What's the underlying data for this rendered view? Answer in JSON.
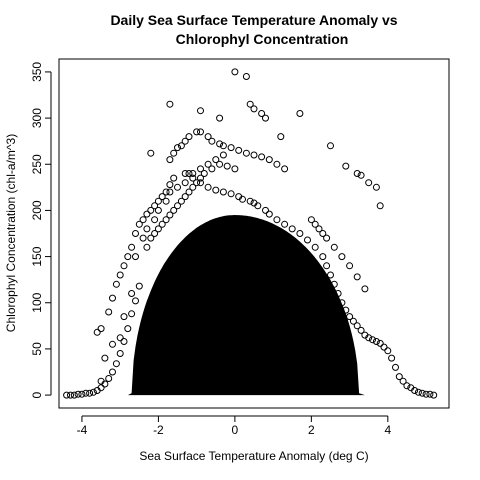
{
  "chart_data": {
    "type": "scatter",
    "title_lines": [
      "Daily Sea Surface Temperature Anomaly vs",
      "Chlorophyl Concentration"
    ],
    "xlabel": "Sea Surface Temperature Anomaly (deg C)",
    "ylabel": "Chlorophyl Concentration (chl-a/m^3)",
    "xlim": [
      -4.6,
      5.6
    ],
    "ylim": [
      -14,
      364
    ],
    "xticks": [
      -4,
      -2,
      0,
      2,
      4
    ],
    "xtick_labels": [
      "-4",
      "-2",
      "0",
      "2",
      "4"
    ],
    "yticks": [
      0,
      50,
      100,
      150,
      200,
      250,
      300,
      350
    ],
    "ytick_labels": [
      "0",
      "50",
      "100",
      "150",
      "200",
      "250",
      "300",
      "350"
    ],
    "grid": false,
    "legend": "none",
    "marker": "open-circle",
    "marker_color": "#000000",
    "series": [
      {
        "x": [
          -4.4,
          -4.3,
          -4.2,
          -4.1,
          -4.0,
          -3.9,
          -3.8,
          -3.7,
          -3.6,
          -3.5,
          -3.4,
          -3.3,
          -3.2,
          -3.1,
          -3.0,
          -2.9,
          -2.8,
          -2.7,
          -2.6,
          -2.5,
          -3.6,
          -3.5,
          -3.3,
          -3.2,
          -3.1,
          -3.0,
          -2.9,
          -2.8,
          -2.7,
          -2.6,
          -2.5,
          -2.4,
          -2.3,
          -2.2,
          -2.1,
          -2.0,
          -1.9,
          -1.8,
          -1.7,
          -1.6,
          -3.5,
          -3.4,
          -3.2,
          -3.0,
          -2.9,
          -2.7,
          -2.6,
          -2.4,
          -2.3,
          -2.1,
          -2.0,
          -1.8,
          -1.7,
          -1.5,
          -1.3,
          -1.1,
          -0.9,
          -0.7,
          -0.5,
          -0.3,
          -2.3,
          -2.2,
          -2.1,
          -2.0,
          -1.9,
          -1.8,
          -1.7,
          -1.6,
          -1.5,
          -1.4,
          -1.3,
          -1.2,
          -1.1,
          -1.0,
          -0.9,
          -0.8,
          -0.6,
          -0.4,
          -0.2,
          0.0,
          -1.7,
          -1.6,
          -1.5,
          -1.4,
          -1.3,
          -1.2,
          -1.0,
          -0.9,
          -0.7,
          -0.6,
          -0.4,
          -0.3,
          -0.1,
          0.1,
          0.3,
          0.5,
          0.7,
          0.9,
          1.1,
          1.3,
          -1.2,
          -1.1,
          -0.9,
          -0.7,
          -0.5,
          -0.3,
          -0.1,
          0.1,
          0.2,
          0.4,
          0.5,
          0.6,
          0.8,
          0.9,
          1.1,
          1.3,
          1.5,
          1.7,
          1.9,
          2.1,
          0.0,
          0.3,
          0.4,
          0.5,
          0.7,
          -1.7,
          -0.9,
          -0.4,
          0.8,
          1.7,
          -2.2,
          -1.3,
          1.2,
          2.5,
          2.9,
          3.2,
          3.3,
          3.5,
          3.7,
          3.8,
          2.3,
          2.4,
          2.5,
          2.6,
          2.7,
          2.8,
          2.9,
          3.0,
          3.1,
          3.2,
          3.3,
          3.4,
          3.5,
          3.6,
          3.7,
          3.8,
          3.9,
          4.0,
          4.1,
          4.2,
          4.3,
          4.4,
          4.5,
          4.6,
          4.7,
          4.8,
          4.9,
          5.0,
          5.1,
          5.2,
          2.0,
          2.1,
          2.2,
          2.3,
          2.4,
          2.6,
          2.8,
          3.0,
          3.2,
          3.4
        ],
        "y": [
          0,
          0,
          0,
          1,
          1,
          2,
          2,
          3,
          5,
          8,
          12,
          18,
          25,
          34,
          45,
          58,
          72,
          88,
          102,
          118,
          68,
          72,
          90,
          105,
          120,
          130,
          140,
          150,
          160,
          175,
          185,
          190,
          196,
          200,
          205,
          210,
          215,
          220,
          228,
          235,
          15,
          40,
          55,
          62,
          85,
          110,
          150,
          170,
          180,
          190,
          200,
          210,
          220,
          225,
          230,
          240,
          245,
          250,
          255,
          260,
          160,
          170,
          175,
          180,
          185,
          190,
          195,
          200,
          205,
          210,
          215,
          220,
          225,
          230,
          235,
          240,
          245,
          250,
          248,
          245,
          255,
          262,
          268,
          270,
          275,
          280,
          285,
          285,
          280,
          275,
          272,
          270,
          268,
          265,
          262,
          260,
          258,
          255,
          250,
          245,
          240,
          235,
          230,
          225,
          222,
          220,
          218,
          215,
          212,
          210,
          208,
          205,
          200,
          196,
          190,
          185,
          180,
          175,
          168,
          160,
          350,
          345,
          315,
          310,
          305,
          315,
          308,
          300,
          300,
          305,
          262,
          240,
          280,
          270,
          248,
          240,
          238,
          230,
          225,
          205,
          150,
          140,
          130,
          120,
          110,
          100,
          92,
          85,
          80,
          75,
          70,
          65,
          62,
          60,
          58,
          56,
          52,
          48,
          40,
          30,
          20,
          15,
          10,
          8,
          5,
          3,
          2,
          1,
          1,
          0,
          190,
          185,
          180,
          175,
          170,
          160,
          150,
          140,
          128,
          115
        ]
      }
    ]
  }
}
